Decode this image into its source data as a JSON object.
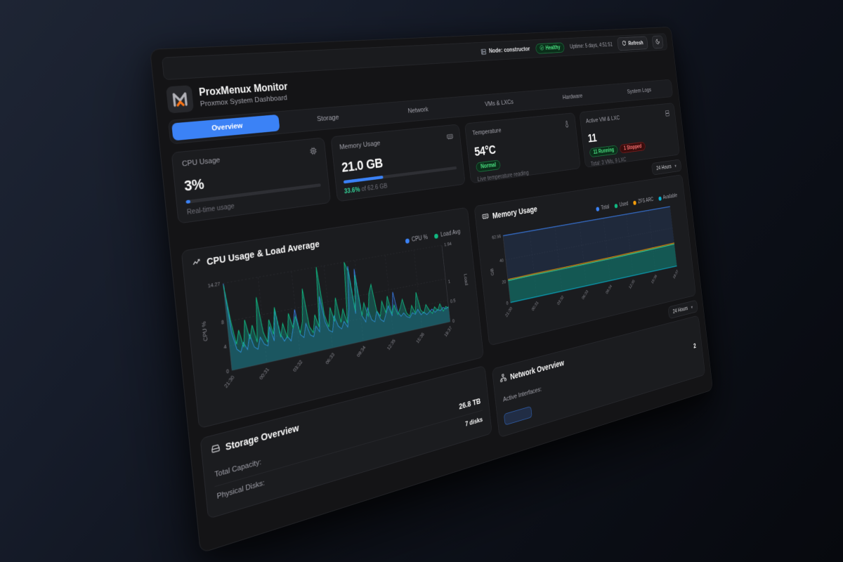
{
  "topbar": {
    "node_label": "Node: constructor",
    "health_label": "Healthy",
    "uptime_label": "Uptime: 5 days, 4:51:51",
    "refresh_label": "Refresh"
  },
  "header": {
    "title": "ProxMenux Monitor",
    "subtitle": "Proxmox System Dashboard"
  },
  "tabs": [
    {
      "label": "Overview",
      "active": true
    },
    {
      "label": "Storage",
      "active": false
    },
    {
      "label": "Network",
      "active": false
    },
    {
      "label": "VMs & LXCs",
      "active": false
    },
    {
      "label": "Hardware",
      "active": false
    },
    {
      "label": "System Logs",
      "active": false
    }
  ],
  "stats": [
    {
      "title": "CPU Usage",
      "value": "3%",
      "caption": "Real-time usage",
      "progress_pct": 3
    },
    {
      "title": "Memory Usage",
      "value": "21.0 GB",
      "percent_text": "33.6%",
      "caption_rest": " of 62.6 GB",
      "progress_pct": 33.6
    },
    {
      "title": "Temperature",
      "value": "54°C",
      "badge": "Normal",
      "caption": "Live temperature reading"
    },
    {
      "title": "Active VM & LXC",
      "value": "11",
      "running_badge": "11 Running",
      "stopped_badge": "1 Stopped",
      "caption": "Total: 3 VMs, 9 LXC"
    }
  ],
  "time_range_top": {
    "label": "24 Hours"
  },
  "time_range_memory": {
    "label": "24 Hours"
  },
  "storage": {
    "title": "Storage Overview",
    "rows": [
      {
        "label": "Total Capacity:",
        "value": "26.8 TB"
      },
      {
        "label": "Physical Disks:",
        "value": "7 disks"
      }
    ]
  },
  "network": {
    "title": "Network Overview",
    "rows": [
      {
        "label": "Active Interfaces:",
        "value": "2"
      }
    ],
    "badge_label": ""
  },
  "colors": {
    "accent_blue": "#3b82f6",
    "green": "#10b981",
    "orange": "#f59e0b",
    "cyan": "#06b6d4",
    "red": "#ef4444"
  },
  "chart_data": [
    {
      "type": "line",
      "title": "CPU Usage & Load Average",
      "grid": "dashed",
      "legend_position": "top-right",
      "x_ticks": [
        "21:30",
        "00:31",
        "03:32",
        "06:33",
        "09:34",
        "12:35",
        "15:36",
        "18:37"
      ],
      "y_left": {
        "label": "CPU %",
        "ticks": [
          0,
          4,
          8,
          14.27
        ],
        "max": 14.27
      },
      "y_right": {
        "label": "Load",
        "ticks": [
          0,
          0.5,
          1,
          1.94
        ],
        "max": 1.94
      },
      "series": [
        {
          "name": "CPU %",
          "color": "#3b82f6",
          "axis": "left",
          "values": [
            14.2,
            6.0,
            3.2,
            2.6,
            4.1,
            2.8,
            5.2,
            3.0,
            2.5,
            4.4,
            3.1,
            2.7,
            5.8,
            3.3,
            8.5,
            4.2,
            2.9,
            3.6,
            2.7,
            4.8,
            7.8,
            3.4,
            2.8,
            5.1,
            3.0,
            2.6,
            4.3,
            3.2,
            9.2,
            4.6,
            3.1,
            2.7,
            5.4,
            3.5,
            2.9,
            4.1,
            3.0,
            6.2,
            13.5,
            5.0,
            12.8,
            4.4,
            3.2,
            5.6,
            3.4,
            2.9,
            4.7,
            3.1,
            2.6,
            3.9,
            5.2,
            3.3,
            7.5,
            3.8,
            2.9,
            3.4,
            2.6,
            2.3,
            3.1,
            2.7,
            3.5,
            2.4,
            2.8,
            2.2,
            2.6,
            3.0,
            2.3,
            2.7,
            2.4,
            2.9,
            2.5,
            2.8
          ]
        },
        {
          "name": "Load Avg",
          "color": "#10b981",
          "axis": "right",
          "values": [
            1.9,
            1.1,
            0.55,
            0.85,
            0.45,
            1.05,
            0.6,
            0.9,
            0.5,
            1.5,
            0.7,
            0.45,
            0.95,
            0.6,
            1.2,
            0.5,
            0.8,
            0.45,
            1.0,
            0.65,
            0.9,
            0.5,
            0.75,
            1.5,
            0.6,
            0.45,
            0.85,
            0.55,
            1.94,
            0.8,
            0.5,
            0.95,
            0.6,
            1.15,
            0.55,
            0.85,
            0.5,
            1.94,
            1.7,
            0.75,
            1.6,
            0.6,
            0.9,
            0.55,
            1.1,
            1.3,
            0.65,
            0.5,
            0.85,
            0.55,
            0.95,
            0.5,
            0.7,
            0.45,
            0.6,
            0.8,
            0.45,
            0.35,
            0.6,
            0.4,
            0.9,
            0.45,
            0.35,
            0.55,
            0.4,
            0.3,
            0.45,
            0.35,
            0.5,
            0.3,
            0.4,
            0.35
          ]
        }
      ]
    },
    {
      "type": "area",
      "title": "Memory Usage",
      "stacked": true,
      "grid": "dashed",
      "legend_position": "top",
      "x_ticks": [
        "21:30",
        "00:31",
        "03:32",
        "06:33",
        "09:34",
        "12:35",
        "15:36",
        "18:37"
      ],
      "y": {
        "label": "GB",
        "ticks": [
          0,
          20,
          40,
          62.56
        ],
        "max": 62.56
      },
      "series": [
        {
          "name": "Total",
          "color": "#3b82f6",
          "values": [
            62.56,
            62.56,
            62.56,
            62.56,
            62.56,
            62.56,
            62.56,
            62.56
          ]
        },
        {
          "name": "Used",
          "color": "#10b981",
          "values": [
            20.6,
            20.9,
            21.0,
            21.2,
            21.5,
            21.9,
            22.4,
            23.0
          ]
        },
        {
          "name": "ZFS ARC",
          "color": "#f59e0b",
          "values": [
            1.1,
            1.1,
            1.2,
            1.2,
            1.2,
            1.3,
            1.3,
            1.3
          ]
        },
        {
          "name": "Available",
          "color": "#06b6d4",
          "values": [
            40.9,
            40.6,
            40.4,
            40.2,
            39.9,
            39.4,
            38.9,
            38.3
          ]
        }
      ]
    }
  ]
}
